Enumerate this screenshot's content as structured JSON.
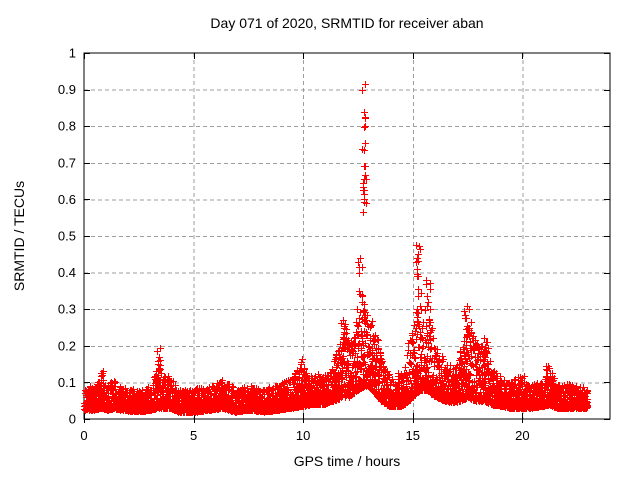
{
  "chart_data": {
    "type": "scatter",
    "title": "Day 071 of 2020, SRMTID for receiver aban",
    "xlabel": "GPS time / hours",
    "ylabel": "SRMTID / TECUs",
    "xlim": [
      0,
      24
    ],
    "ylim": [
      0,
      1
    ],
    "xticks": [
      0,
      5,
      10,
      15,
      20
    ],
    "xtick_labels": [
      "0",
      "5",
      "10",
      "15",
      "20"
    ],
    "yticks": [
      0,
      0.1,
      0.2,
      0.3,
      0.4,
      0.5,
      0.6,
      0.7,
      0.8,
      0.9,
      1
    ],
    "ytick_labels": [
      "0",
      "0.1",
      "0.2",
      "0.3",
      "0.4",
      "0.5",
      "0.6",
      "0.7",
      "0.8",
      "0.9",
      "1"
    ],
    "grid": "dashed",
    "grid_color": "#9e9e9e",
    "marker": "plus",
    "marker_color": "#ff0000",
    "border_color": "#000000",
    "x_data_range": [
      0,
      22.97
    ],
    "scatter": {
      "seed": 71,
      "points_per_hour": 170,
      "tail_power": 2.2,
      "envelope": [
        [
          0.0,
          0.025,
          0.095
        ],
        [
          0.45,
          0.025,
          0.09
        ],
        [
          0.8,
          0.03,
          0.125
        ],
        [
          1.05,
          0.025,
          0.09
        ],
        [
          1.35,
          0.03,
          0.115
        ],
        [
          1.7,
          0.025,
          0.085
        ],
        [
          2.5,
          0.02,
          0.08
        ],
        [
          3.05,
          0.025,
          0.09
        ],
        [
          3.35,
          0.03,
          0.155
        ],
        [
          3.6,
          0.03,
          0.12
        ],
        [
          3.95,
          0.03,
          0.115
        ],
        [
          4.3,
          0.02,
          0.08
        ],
        [
          5.1,
          0.02,
          0.085
        ],
        [
          5.8,
          0.025,
          0.09
        ],
        [
          6.3,
          0.03,
          0.11
        ],
        [
          6.9,
          0.02,
          0.085
        ],
        [
          7.5,
          0.025,
          0.095
        ],
        [
          8.2,
          0.02,
          0.08
        ],
        [
          8.8,
          0.025,
          0.095
        ],
        [
          9.4,
          0.03,
          0.11
        ],
        [
          9.95,
          0.035,
          0.155
        ],
        [
          10.35,
          0.04,
          0.12
        ],
        [
          10.9,
          0.04,
          0.125
        ],
        [
          11.35,
          0.05,
          0.145
        ],
        [
          11.8,
          0.06,
          0.26
        ],
        [
          12.1,
          0.06,
          0.21
        ],
        [
          12.5,
          0.08,
          0.31
        ],
        [
          12.8,
          0.09,
          0.33
        ],
        [
          13.0,
          0.09,
          0.31
        ],
        [
          13.25,
          0.07,
          0.27
        ],
        [
          13.55,
          0.05,
          0.17
        ],
        [
          13.95,
          0.035,
          0.115
        ],
        [
          14.45,
          0.035,
          0.13
        ],
        [
          14.85,
          0.05,
          0.23
        ],
        [
          15.15,
          0.07,
          0.3
        ],
        [
          15.35,
          0.08,
          0.32
        ],
        [
          15.6,
          0.08,
          0.3
        ],
        [
          15.8,
          0.07,
          0.27
        ],
        [
          16.05,
          0.06,
          0.2
        ],
        [
          16.45,
          0.05,
          0.165
        ],
        [
          16.85,
          0.045,
          0.14
        ],
        [
          17.2,
          0.05,
          0.2
        ],
        [
          17.5,
          0.06,
          0.26
        ],
        [
          17.85,
          0.05,
          0.225
        ],
        [
          18.25,
          0.05,
          0.2
        ],
        [
          18.6,
          0.04,
          0.145
        ],
        [
          19.05,
          0.035,
          0.115
        ],
        [
          19.5,
          0.03,
          0.1
        ],
        [
          19.9,
          0.03,
          0.13
        ],
        [
          20.3,
          0.03,
          0.095
        ],
        [
          20.85,
          0.035,
          0.1
        ],
        [
          21.2,
          0.04,
          0.13
        ],
        [
          21.6,
          0.03,
          0.1
        ],
        [
          22.2,
          0.03,
          0.095
        ],
        [
          22.97,
          0.03,
          0.085
        ]
      ],
      "spikes": [
        {
          "x": 12.79,
          "dx": 0.1,
          "values": [
            0.915,
            0.9,
            0.84,
            0.825,
            0.8,
            0.755,
            0.735,
            0.69,
            0.668,
            0.655,
            0.645,
            0.635,
            0.625,
            0.615,
            0.6,
            0.59,
            0.565
          ]
        },
        {
          "x": 12.6,
          "dx": 0.12,
          "values": [
            0.44,
            0.43,
            0.415,
            0.4,
            0.35,
            0.34,
            0.335
          ]
        },
        {
          "x": 15.27,
          "dx": 0.12,
          "values": [
            0.475,
            0.465,
            0.45,
            0.44,
            0.43,
            0.41,
            0.395,
            0.39,
            0.355,
            0.345,
            0.335,
            0.31,
            0.3,
            0.29,
            0.28,
            0.265,
            0.255
          ]
        },
        {
          "x": 15.7,
          "dx": 0.12,
          "values": [
            0.38,
            0.37,
            0.355,
            0.335,
            0.32,
            0.31,
            0.3
          ]
        },
        {
          "x": 17.5,
          "dx": 0.18,
          "values": [
            0.31,
            0.3,
            0.295,
            0.285,
            0.275,
            0.265,
            0.255,
            0.245,
            0.235,
            0.225
          ]
        },
        {
          "x": 11.85,
          "dx": 0.12,
          "values": [
            0.27,
            0.26,
            0.25,
            0.245,
            0.235,
            0.225
          ]
        },
        {
          "x": 3.4,
          "dx": 0.1,
          "values": [
            0.195,
            0.185,
            0.17,
            0.16,
            0.15,
            0.14
          ]
        },
        {
          "x": 18.3,
          "dx": 0.15,
          "values": [
            0.22,
            0.21,
            0.2,
            0.195,
            0.185,
            0.18
          ]
        },
        {
          "x": 9.95,
          "dx": 0.12,
          "values": [
            0.165,
            0.155,
            0.15,
            0.14
          ]
        },
        {
          "x": 21.2,
          "dx": 0.15,
          "values": [
            0.145,
            0.14,
            0.133,
            0.127
          ]
        },
        {
          "x": 0.82,
          "dx": 0.08,
          "values": [
            0.13,
            0.125,
            0.12
          ]
        }
      ]
    }
  }
}
